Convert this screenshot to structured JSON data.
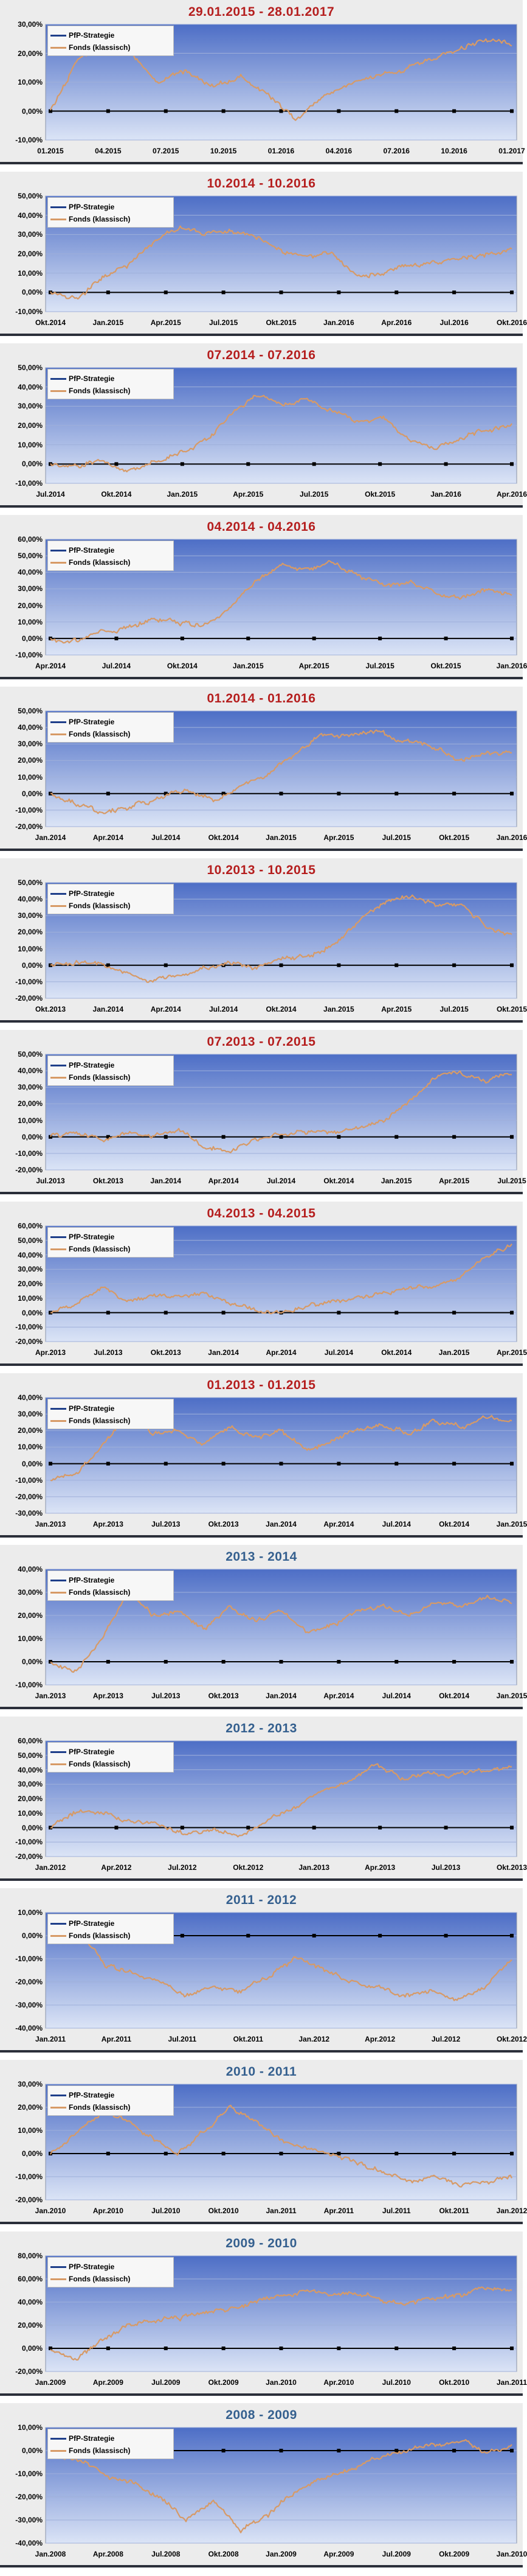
{
  "colors": {
    "strategy": "#1f3f8a",
    "fonds": "#d79a66",
    "title_recent": "#b51e1e",
    "title_year": "#35608f",
    "plot_top": "#4d6ec6",
    "plot_bottom": "#dbe4f6"
  },
  "chart_data": [
    {
      "type": "line",
      "title": "29.01.2015 - 28.01.2017",
      "title_style": "recent",
      "ylim": [
        -10,
        30
      ],
      "yticks": [
        "-10,00%",
        "0,00%",
        "10,00%",
        "20,00%",
        "30,00%"
      ],
      "xticks": [
        "01.2015",
        "04.2015",
        "07.2015",
        "10.2015",
        "01.2016",
        "04.2016",
        "07.2016",
        "10.2016",
        "01.2017"
      ],
      "series": [
        {
          "name": "PfP-Strategie",
          "values": [
            0,
            0,
            0,
            0,
            0,
            0,
            0,
            0,
            0
          ]
        },
        {
          "name": "Fonds (klassisch)",
          "values": [
            0,
            18,
            22,
            20,
            10,
            14,
            8,
            12,
            6,
            -3,
            5,
            9,
            12,
            14,
            18,
            21,
            25,
            23
          ]
        }
      ]
    },
    {
      "type": "line",
      "title": "10.2014 - 10.2016",
      "title_style": "recent",
      "ylim": [
        -10,
        50
      ],
      "yticks": [
        "-10,00%",
        "0,00%",
        "10,00%",
        "20,00%",
        "30,00%",
        "40,00%",
        "50,00%"
      ],
      "xticks": [
        "Okt.2014",
        "Jan.2015",
        "Apr.2015",
        "Jul.2015",
        "Okt.2015",
        "Jan.2016",
        "Apr.2016",
        "Jul.2016",
        "Okt.2016"
      ],
      "series": [
        {
          "name": "PfP-Strategie",
          "values": [
            0,
            0,
            0,
            0,
            0,
            0,
            0,
            0,
            0
          ]
        },
        {
          "name": "Fonds (klassisch)",
          "values": [
            0,
            -3,
            8,
            14,
            26,
            34,
            30,
            32,
            28,
            22,
            18,
            20,
            8,
            10,
            14,
            16,
            18,
            20,
            22
          ]
        }
      ]
    },
    {
      "type": "line",
      "title": "07.2014 - 07.2016",
      "title_style": "recent",
      "ylim": [
        -10,
        50
      ],
      "yticks": [
        "-10,00%",
        "0,00%",
        "10,00%",
        "20,00%",
        "30,00%",
        "40,00%",
        "50,00%"
      ],
      "xticks": [
        "Jul.2014",
        "Okt.2014",
        "Jan.2015",
        "Apr.2015",
        "Jul.2015",
        "Okt.2015",
        "Jan.2016",
        "Apr.2016"
      ],
      "series": [
        {
          "name": "PfP-Strategie",
          "values": [
            0,
            0,
            0,
            0,
            0,
            0,
            0,
            0
          ]
        },
        {
          "name": "Fonds (klassisch)",
          "values": [
            0,
            -1,
            2,
            -3,
            1,
            5,
            12,
            25,
            36,
            32,
            33,
            28,
            22,
            24,
            12,
            8,
            14,
            18,
            20
          ]
        }
      ]
    },
    {
      "type": "line",
      "title": "04.2014 - 04.2016",
      "title_style": "recent",
      "ylim": [
        -10,
        60
      ],
      "yticks": [
        "-10,00%",
        "0,00%",
        "10,00%",
        "20,00%",
        "30,00%",
        "40,00%",
        "50,00%",
        "60,00%"
      ],
      "xticks": [
        "Apr.2014",
        "Jul.2014",
        "Okt.2014",
        "Jan.2015",
        "Apr.2015",
        "Jul.2015",
        "Okt.2015",
        "Jan.2016"
      ],
      "series": [
        {
          "name": "PfP-Strategie",
          "values": [
            0,
            0,
            0,
            0,
            0,
            0,
            0,
            0
          ]
        },
        {
          "name": "Fonds (klassisch)",
          "values": [
            0,
            -2,
            4,
            6,
            12,
            10,
            8,
            18,
            35,
            44,
            42,
            46,
            38,
            32,
            34,
            28,
            24,
            30,
            26
          ]
        }
      ]
    },
    {
      "type": "line",
      "title": "01.2014 - 01.2016",
      "title_style": "recent",
      "ylim": [
        -20,
        50
      ],
      "yticks": [
        "-20,00%",
        "-10,00%",
        "0,00%",
        "10,00%",
        "20,00%",
        "30,00%",
        "40,00%",
        "50,00%"
      ],
      "xticks": [
        "Jan.2014",
        "Apr.2014",
        "Jul.2014",
        "Okt.2014",
        "Jan.2015",
        "Apr.2015",
        "Jul.2015",
        "Okt.2015",
        "Jan.2016"
      ],
      "series": [
        {
          "name": "PfP-Strategie",
          "values": [
            0,
            0,
            0,
            0,
            0,
            0,
            0,
            0,
            0
          ]
        },
        {
          "name": "Fonds (klassisch)",
          "values": [
            0,
            -6,
            -12,
            -8,
            -2,
            2,
            -4,
            4,
            12,
            24,
            36,
            34,
            38,
            32,
            30,
            20,
            24,
            26
          ]
        }
      ]
    },
    {
      "type": "line",
      "title": "10.2013 - 10.2015",
      "title_style": "recent",
      "ylim": [
        -20,
        50
      ],
      "yticks": [
        "-20,00%",
        "-10,00%",
        "0,00%",
        "10,00%",
        "20,00%",
        "30,00%",
        "40,00%",
        "50,00%"
      ],
      "xticks": [
        "Okt.2013",
        "Jan.2014",
        "Apr.2014",
        "Jul.2014",
        "Okt.2014",
        "Jan.2015",
        "Apr.2015",
        "Jul.2015",
        "Okt.2015"
      ],
      "series": [
        {
          "name": "PfP-Strategie",
          "values": [
            0,
            0,
            0,
            0,
            0,
            0,
            0,
            0,
            0
          ]
        },
        {
          "name": "Fonds (klassisch)",
          "values": [
            0,
            2,
            0,
            -4,
            -10,
            -6,
            -2,
            2,
            -2,
            4,
            6,
            12,
            26,
            38,
            42,
            36,
            38,
            24,
            18
          ]
        }
      ]
    },
    {
      "type": "line",
      "title": "07.2013 - 07.2015",
      "title_style": "recent",
      "ylim": [
        -20,
        50
      ],
      "yticks": [
        "-20,00%",
        "-10,00%",
        "0,00%",
        "10,00%",
        "20,00%",
        "30,00%",
        "40,00%",
        "50,00%"
      ],
      "xticks": [
        "Jul.2013",
        "Okt.2013",
        "Jan.2014",
        "Apr.2014",
        "Jul.2014",
        "Okt.2014",
        "Jan.2015",
        "Apr.2015",
        "Jul.2015"
      ],
      "series": [
        {
          "name": "PfP-Strategie",
          "values": [
            0,
            0,
            0,
            0,
            0,
            0,
            0,
            0,
            0
          ]
        },
        {
          "name": "Fonds (klassisch)",
          "values": [
            0,
            3,
            -2,
            2,
            0,
            4,
            -6,
            -8,
            -2,
            2,
            4,
            2,
            6,
            10,
            22,
            36,
            40,
            34,
            38
          ]
        }
      ]
    },
    {
      "type": "line",
      "title": "04.2013 - 04.2015",
      "title_style": "recent",
      "ylim": [
        -20,
        60
      ],
      "yticks": [
        "-20,00%",
        "-10,00%",
        "0,00%",
        "10,00%",
        "20,00%",
        "30,00%",
        "40,00%",
        "50,00%",
        "60,00%"
      ],
      "xticks": [
        "Apr.2013",
        "Jul.2013",
        "Okt.2013",
        "Jan.2014",
        "Apr.2014",
        "Jul.2014",
        "Okt.2014",
        "Jan.2015",
        "Apr.2015"
      ],
      "series": [
        {
          "name": "PfP-Strategie",
          "values": [
            0,
            0,
            0,
            0,
            0,
            0,
            0,
            0,
            0
          ]
        },
        {
          "name": "Fonds (klassisch)",
          "values": [
            0,
            6,
            18,
            8,
            12,
            10,
            14,
            6,
            2,
            -1,
            4,
            8,
            10,
            14,
            16,
            20,
            24,
            40,
            46
          ]
        }
      ]
    },
    {
      "type": "line",
      "title": "01.2013 - 01.2015",
      "title_style": "recent",
      "ylim": [
        -30,
        40
      ],
      "yticks": [
        "-30,00%",
        "-20,00%",
        "-10,00%",
        "0,00%",
        "10,00%",
        "20,00%",
        "30,00%",
        "40,00%"
      ],
      "xticks": [
        "Jan.2013",
        "Apr.2013",
        "Jul.2013",
        "Okt.2013",
        "Jan.2014",
        "Apr.2014",
        "Jul.2014",
        "Okt.2014",
        "Jan.2015"
      ],
      "series": [
        {
          "name": "PfP-Strategie",
          "values": [
            0,
            0,
            0,
            0,
            0,
            0,
            0,
            0,
            0
          ]
        },
        {
          "name": "Fonds (klassisch)",
          "values": [
            -10,
            -6,
            10,
            30,
            18,
            20,
            12,
            22,
            16,
            20,
            8,
            14,
            20,
            24,
            18,
            26,
            22,
            28,
            26
          ]
        }
      ]
    },
    {
      "type": "line",
      "title": "2013 - 2014",
      "title_style": "year",
      "ylim": [
        -10,
        40
      ],
      "yticks": [
        "-10,00%",
        "0,00%",
        "10,00%",
        "20,00%",
        "30,00%",
        "40,00%"
      ],
      "xticks": [
        "Jan.2013",
        "Apr.2013",
        "Jul.2013",
        "Okt.2013",
        "Jan.2014",
        "Apr.2014",
        "Jul.2014",
        "Okt.2014",
        "Jan.2015"
      ],
      "series": [
        {
          "name": "PfP-Strategie",
          "values": [
            0,
            0,
            0,
            0,
            0,
            0,
            0,
            0,
            0
          ]
        },
        {
          "name": "Fonds (klassisch)",
          "values": [
            0,
            -4,
            10,
            30,
            20,
            22,
            14,
            24,
            18,
            22,
            12,
            16,
            22,
            24,
            20,
            26,
            24,
            28,
            26
          ]
        }
      ]
    },
    {
      "type": "line",
      "title": "2012 - 2013",
      "title_style": "year",
      "ylim": [
        -20,
        60
      ],
      "yticks": [
        "-20,00%",
        "-10,00%",
        "0,00%",
        "10,00%",
        "20,00%",
        "30,00%",
        "40,00%",
        "50,00%",
        "60,00%"
      ],
      "xticks": [
        "Jan.2012",
        "Apr.2012",
        "Jul.2012",
        "Okt.2012",
        "Jan.2013",
        "Apr.2013",
        "Jul.2013",
        "Okt.2013"
      ],
      "series": [
        {
          "name": "PfP-Strategie",
          "values": [
            0,
            0,
            0,
            0,
            0,
            0,
            0,
            0
          ]
        },
        {
          "name": "Fonds (klassisch)",
          "values": [
            0,
            12,
            10,
            4,
            2,
            -4,
            -2,
            -6,
            4,
            14,
            26,
            32,
            44,
            34,
            38,
            36,
            40,
            42
          ]
        }
      ]
    },
    {
      "type": "line",
      "title": "2011 - 2012",
      "title_style": "year",
      "ylim": [
        -40,
        10
      ],
      "yticks": [
        "-40,00%",
        "-30,00%",
        "-20,00%",
        "-10,00%",
        "0,00%",
        "10,00%"
      ],
      "xticks": [
        "Jan.2011",
        "Apr.2011",
        "Jul.2011",
        "Okt.2011",
        "Jan.2012",
        "Apr.2012",
        "Jul.2012",
        "Okt.2012"
      ],
      "series": [
        {
          "name": "PfP-Strategie",
          "values": [
            0,
            0,
            0,
            0,
            0,
            0,
            0,
            0
          ]
        },
        {
          "name": "Fonds (klassisch)",
          "values": [
            0,
            2,
            -12,
            -16,
            -20,
            -26,
            -22,
            -24,
            -18,
            -10,
            -14,
            -20,
            -22,
            -26,
            -24,
            -28,
            -22,
            -10
          ]
        }
      ]
    },
    {
      "type": "line",
      "title": "2010 - 2011",
      "title_style": "year",
      "ylim": [
        -20,
        30
      ],
      "yticks": [
        "-20,00%",
        "-10,00%",
        "0,00%",
        "10,00%",
        "20,00%",
        "30,00%"
      ],
      "xticks": [
        "Jan.2010",
        "Apr.2010",
        "Jul.2010",
        "Okt.2010",
        "Jan.2011",
        "Apr.2011",
        "Jul.2011",
        "Okt.2011",
        "Jan.2012"
      ],
      "series": [
        {
          "name": "PfP-Strategie",
          "values": [
            0,
            0,
            0,
            0,
            0,
            0,
            0,
            0,
            0
          ]
        },
        {
          "name": "Fonds (klassisch)",
          "values": [
            0,
            10,
            18,
            14,
            6,
            0,
            10,
            20,
            14,
            6,
            2,
            0,
            -4,
            -8,
            -12,
            -10,
            -14,
            -12,
            -10
          ]
        }
      ]
    },
    {
      "type": "line",
      "title": "2009 - 2010",
      "title_style": "year",
      "ylim": [
        -20,
        80
      ],
      "yticks": [
        "-20,00%",
        "0,00%",
        "20,00%",
        "40,00%",
        "60,00%",
        "80,00%"
      ],
      "xticks": [
        "Jan.2009",
        "Apr.2009",
        "Jul.2009",
        "Okt.2009",
        "Jan.2010",
        "Apr.2010",
        "Jul.2010",
        "Okt.2010",
        "Jan.2011"
      ],
      "series": [
        {
          "name": "PfP-Strategie",
          "values": [
            0,
            0,
            0,
            0,
            0,
            0,
            0,
            0,
            0
          ]
        },
        {
          "name": "Fonds (klassisch)",
          "values": [
            0,
            -8,
            6,
            20,
            24,
            26,
            32,
            34,
            40,
            46,
            50,
            46,
            48,
            42,
            38,
            44,
            46,
            52,
            50
          ]
        }
      ]
    },
    {
      "type": "line",
      "title": "2008 - 2009",
      "title_style": "year",
      "ylim": [
        -40,
        10
      ],
      "yticks": [
        "-40,00%",
        "-30,00%",
        "-20,00%",
        "-10,00%",
        "0,00%",
        "10,00%"
      ],
      "xticks": [
        "Jan.2008",
        "Apr.2008",
        "Jul.2008",
        "Okt.2008",
        "Jan.2009",
        "Apr.2009",
        "Jul.2009",
        "Okt.2009",
        "Jan.2010"
      ],
      "series": [
        {
          "name": "PfP-Strategie",
          "values": [
            0,
            0,
            0,
            0,
            0,
            0,
            0,
            0,
            0
          ]
        },
        {
          "name": "Fonds (klassisch)",
          "values": [
            0,
            -4,
            -10,
            -14,
            -20,
            -30,
            -22,
            -34,
            -28,
            -18,
            -12,
            -8,
            -4,
            0,
            2,
            4,
            0,
            2
          ]
        }
      ]
    }
  ]
}
